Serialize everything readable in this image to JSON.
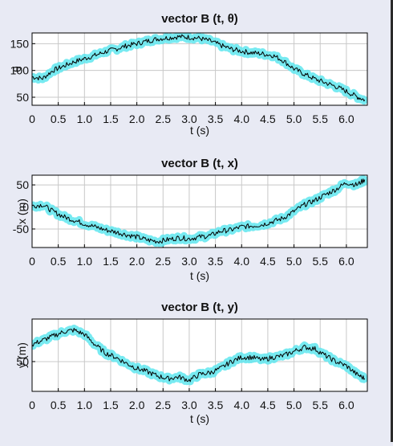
{
  "colors": {
    "background": "#e8eaf4",
    "plot_background": "#ffffff",
    "grid": "#c8c8c8",
    "glow": "#5fe6ee",
    "line": "#000000"
  },
  "chart_data": [
    {
      "type": "line",
      "title": "vector B (t, θ)",
      "xlabel": "t (s)",
      "ylabel": "θ",
      "xlim": [
        0,
        6.4
      ],
      "ylim": [
        35,
        170
      ],
      "xticks": [
        "0",
        "0.5",
        "1.0",
        "1.5",
        "2.0",
        "2.5",
        "3.0",
        "3.5",
        "4.0",
        "4.5",
        "5.0",
        "5.5",
        "6.0"
      ],
      "yticks": [
        "50",
        "100",
        "150"
      ],
      "grid": true,
      "x": [
        0,
        0.2,
        0.4,
        0.6,
        0.8,
        1.0,
        1.2,
        1.4,
        1.6,
        1.8,
        2.0,
        2.2,
        2.4,
        2.6,
        2.8,
        3.0,
        3.2,
        3.4,
        3.6,
        3.8,
        4.0,
        4.2,
        4.4,
        4.6,
        4.8,
        5.0,
        5.2,
        5.4,
        5.6,
        5.8,
        6.0,
        6.2,
        6.35
      ],
      "y": [
        88,
        85,
        100,
        108,
        116,
        122,
        128,
        135,
        140,
        146,
        150,
        155,
        159,
        161,
        163,
        162,
        160,
        155,
        147,
        140,
        136,
        133,
        131,
        128,
        118,
        103,
        93,
        84,
        77,
        70,
        61,
        51,
        45
      ]
    },
    {
      "type": "line",
      "title": "vector B (t, x)",
      "xlabel": "t (s)",
      "ylabel": "x (m)",
      "xlim": [
        0,
        6.4
      ],
      "ylim": [
        -92,
        72
      ],
      "xticks": [
        "0",
        "0.5",
        "1.0",
        "1.5",
        "2.0",
        "2.5",
        "3.0",
        "3.5",
        "4.0",
        "4.5",
        "5.0",
        "5.5",
        "6.0"
      ],
      "yticks": [
        "-50",
        "0",
        "50"
      ],
      "grid": true,
      "x": [
        0,
        0.2,
        0.4,
        0.6,
        0.8,
        1.0,
        1.2,
        1.4,
        1.6,
        1.8,
        2.0,
        2.2,
        2.4,
        2.6,
        2.8,
        3.0,
        3.2,
        3.4,
        3.6,
        3.8,
        4.0,
        4.2,
        4.4,
        4.6,
        4.8,
        5.0,
        5.2,
        5.4,
        5.6,
        5.8,
        6.0,
        6.2,
        6.35
      ],
      "y": [
        2,
        5,
        -10,
        -22,
        -30,
        -38,
        -45,
        -52,
        -57,
        -63,
        -68,
        -75,
        -78,
        -74,
        -70,
        -72,
        -68,
        -65,
        -55,
        -52,
        -45,
        -43,
        -40,
        -33,
        -25,
        -10,
        5,
        15,
        28,
        40,
        55,
        50,
        62
      ]
    },
    {
      "type": "line",
      "title": "vector B (t, y)",
      "xlabel": "t (s)",
      "ylabel": "y (m)",
      "xlim": [
        0,
        6.4
      ],
      "ylim": [
        15,
        100
      ],
      "xticks": [
        "0",
        "0.5",
        "1.0",
        "1.5",
        "2.0",
        "2.5",
        "3.0",
        "3.5",
        "4.0",
        "4.5",
        "5.0",
        "5.5",
        "6.0"
      ],
      "yticks": [
        "50"
      ],
      "grid": true,
      "x": [
        0,
        0.2,
        0.4,
        0.6,
        0.8,
        1.0,
        1.2,
        1.4,
        1.6,
        1.8,
        2.0,
        2.2,
        2.4,
        2.6,
        2.8,
        3.0,
        3.2,
        3.4,
        3.6,
        3.8,
        4.0,
        4.2,
        4.4,
        4.6,
        4.8,
        5.0,
        5.2,
        5.4,
        5.6,
        5.8,
        6.0,
        6.2,
        6.35
      ],
      "y": [
        70,
        75,
        80,
        85,
        87,
        82,
        70,
        60,
        55,
        48,
        42,
        38,
        33,
        30,
        32,
        28,
        35,
        37,
        42,
        50,
        55,
        55,
        52,
        55,
        57,
        62,
        67,
        65,
        57,
        50,
        45,
        35,
        30
      ]
    }
  ]
}
